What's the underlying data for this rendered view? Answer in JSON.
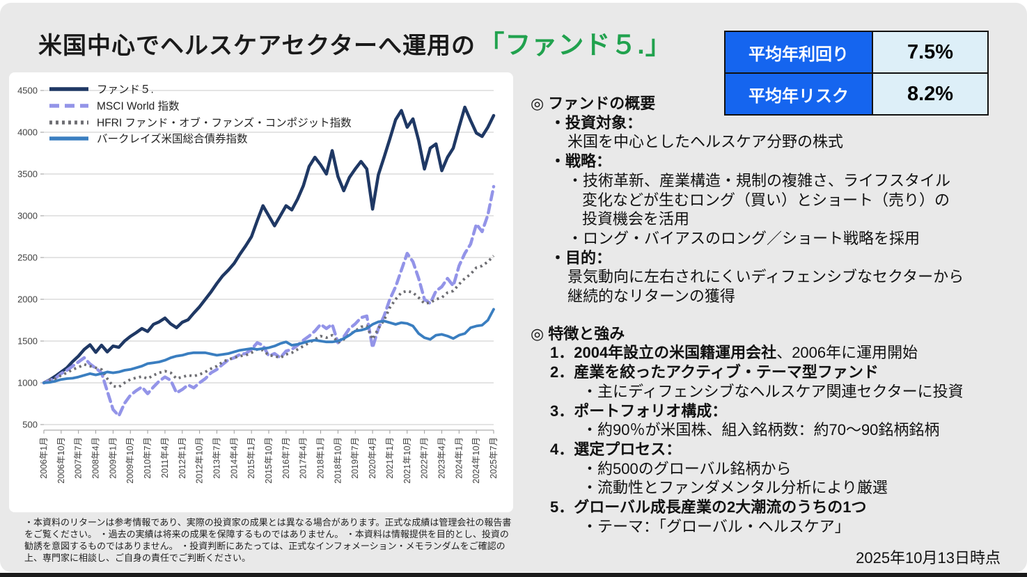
{
  "page": {
    "title_prefix": "米国中心でヘルスケアセクターへ運用の",
    "title_fund": "「ファンド５.」",
    "as_of_date": "2025年10月13日時点",
    "colors": {
      "slide_bg": "#E9E9E9",
      "title_accent_green": "#21A24E",
      "table_label_bg": "#1565EF",
      "table_value_bg": "#DDEFF8"
    }
  },
  "stats_table": {
    "rows": [
      {
        "label": "平均年利回り",
        "value": "7.5%"
      },
      {
        "label": "平均年リスク",
        "value": "8.2%"
      }
    ]
  },
  "overview": {
    "heading": "◎ ファンドの概要",
    "lines": [
      {
        "indent": 1,
        "bold": true,
        "text": "・投資対象："
      },
      {
        "indent": 2,
        "bold": false,
        "text": "米国を中心としたヘルスケア分野の株式"
      },
      {
        "indent": 1,
        "bold": true,
        "text": "・戦略："
      },
      {
        "indent": 2,
        "bold": false,
        "text": "・技術革新、産業構造・規制の複雑さ、ライフスタイル"
      },
      {
        "indent": 3,
        "bold": false,
        "text": "変化などが生むロング（買い）とショート（売り）の"
      },
      {
        "indent": 3,
        "bold": false,
        "text": "投資機会を活用"
      },
      {
        "indent": 2,
        "bold": false,
        "text": "・ロング・バイアスのロング／ショート戦略を採用"
      },
      {
        "indent": 1,
        "bold": true,
        "text": "・目的："
      },
      {
        "indent": 2,
        "bold": false,
        "text": "景気動向に左右されにくいディフェンシブなセクターから"
      },
      {
        "indent": 2,
        "bold": false,
        "text": "継続的なリターンの獲得"
      }
    ]
  },
  "features": {
    "heading": "◎ 特徴と強み",
    "lines": [
      {
        "indent": 1,
        "runs": [
          {
            "t": "1．2004年設立の米国籍運用会社",
            "b": true
          },
          {
            "t": "、2006年に運用開始",
            "b": false
          }
        ]
      },
      {
        "indent": 1,
        "bold": true,
        "text": "2．産業を絞ったアクティブ・テーマ型ファンド"
      },
      {
        "indent": 3,
        "bold": false,
        "text": "・主にディフェンシブなヘルスケア関連セクターに投資"
      },
      {
        "indent": 1,
        "bold": true,
        "text": "3．ポートフォリオ構成："
      },
      {
        "indent": 3,
        "bold": false,
        "text": "・約90％が米国株、組入銘柄数：約70～90銘柄銘柄"
      },
      {
        "indent": 1,
        "bold": true,
        "text": "4．選定プロセス："
      },
      {
        "indent": 3,
        "bold": false,
        "text": "・約500のグローバル銘柄から"
      },
      {
        "indent": 3,
        "bold": false,
        "text": "・流動性とファンダメンタル分析により厳選"
      },
      {
        "indent": 1,
        "bold": true,
        "text": "5．グローバル成長産業の2大潮流のうちの1つ"
      },
      {
        "indent": 3,
        "bold": false,
        "text": "・テーマ：「グローバル・ヘルスケア」"
      }
    ]
  },
  "disclaimer": "・本資料のリターンは参考情報であり、実際の投資家の成果とは異なる場合があります。正式な成績は管理会社の報告書をご覧ください。 ・過去の実績は将来の成果を保障するものではありません。 ・本資料は情報提供を目的とし、投資の勧誘を意図するものではありません。 ・投資判断にあたっては、正式なインフォメーション・メモランダムをご確認の上、専門家に相談し、ご自身の責任でご判断ください。",
  "chart_data": {
    "type": "line",
    "title": "",
    "xlabel": "",
    "ylabel": "",
    "ylim": [
      500,
      4500
    ],
    "yticks": [
      500,
      1000,
      1500,
      2000,
      2500,
      3000,
      3500,
      4000,
      4500
    ],
    "grid": "horizontal",
    "legend_position": "top-left-inside",
    "x_start": "2006-01",
    "x_end": "2025-07",
    "x_step_months": 3,
    "xtick_every_points": 3,
    "xtick_labels": [
      "2006年1月",
      "2006年10月",
      "2007年7月",
      "2008年4月",
      "2009年1月",
      "2009年10月",
      "2010年7月",
      "2011年4月",
      "2012年1月",
      "2012年10月",
      "2013年7月",
      "2014年4月",
      "2015年1月",
      "2015年10月",
      "2016年7月",
      "2017年4月",
      "2018年1月",
      "2018年10月",
      "2019年7月",
      "2020年4月",
      "2021年1月",
      "2021年10月",
      "2022年7月",
      "2023年4月",
      "2024年1月",
      "2024年10月",
      "2025年7月"
    ],
    "series": [
      {
        "name": "ファンド５.",
        "color": "#1F3864",
        "style": "solid",
        "width": 4.5,
        "values": [
          1000,
          1035,
          1080,
          1130,
          1180,
          1255,
          1320,
          1400,
          1455,
          1365,
          1450,
          1370,
          1440,
          1425,
          1500,
          1555,
          1600,
          1650,
          1615,
          1700,
          1730,
          1775,
          1705,
          1660,
          1725,
          1755,
          1835,
          1910,
          2000,
          2090,
          2190,
          2280,
          2350,
          2430,
          2540,
          2640,
          2750,
          2940,
          3120,
          3000,
          2880,
          3000,
          3120,
          3070,
          3200,
          3360,
          3590,
          3700,
          3610,
          3500,
          3780,
          3470,
          3300,
          3460,
          3560,
          3650,
          3560,
          3080,
          3490,
          3700,
          3920,
          4150,
          4260,
          4060,
          4160,
          3900,
          3560,
          3810,
          3860,
          3540,
          3700,
          3810,
          4060,
          4300,
          4140,
          3990,
          3950,
          4060,
          4200
        ]
      },
      {
        "name": "MSCI  World 指数",
        "color": "#9394E8",
        "style": "dashed",
        "width": 4.5,
        "values": [
          1000,
          1030,
          1055,
          1110,
          1150,
          1200,
          1250,
          1300,
          1225,
          1175,
          1120,
          900,
          680,
          605,
          755,
          850,
          905,
          950,
          870,
          950,
          1020,
          1070,
          1030,
          880,
          920,
          975,
          940,
          1000,
          1050,
          1120,
          1160,
          1220,
          1275,
          1300,
          1340,
          1350,
          1400,
          1480,
          1450,
          1320,
          1350,
          1300,
          1380,
          1400,
          1450,
          1510,
          1560,
          1620,
          1700,
          1650,
          1700,
          1480,
          1550,
          1650,
          1705,
          1780,
          1800,
          1420,
          1650,
          1800,
          2000,
          2150,
          2350,
          2550,
          2450,
          2250,
          2000,
          1950,
          2100,
          2150,
          2250,
          2160,
          2400,
          2550,
          2660,
          2900,
          2810,
          3010,
          3350
        ]
      },
      {
        "name": "HFRI ファンド・オブ・ファンズ・コンポジット指数",
        "color": "#6E6E73",
        "style": "dotted",
        "width": 3.8,
        "values": [
          1000,
          1030,
          1050,
          1090,
          1120,
          1160,
          1185,
          1220,
          1200,
          1180,
          1160,
          1050,
          960,
          950,
          1000,
          1040,
          1060,
          1075,
          1050,
          1090,
          1120,
          1140,
          1120,
          1050,
          1070,
          1090,
          1080,
          1100,
          1130,
          1170,
          1200,
          1250,
          1280,
          1300,
          1320,
          1330,
          1360,
          1400,
          1390,
          1330,
          1320,
          1300,
          1340,
          1360,
          1400,
          1440,
          1480,
          1520,
          1560,
          1540,
          1570,
          1480,
          1520,
          1580,
          1620,
          1670,
          1680,
          1520,
          1650,
          1750,
          1900,
          2000,
          2080,
          2100,
          2080,
          2020,
          1950,
          1960,
          2000,
          2020,
          2080,
          2100,
          2180,
          2250,
          2300,
          2380,
          2400,
          2450,
          2520
        ]
      },
      {
        "name": "バークレイズ米国総合債券指数",
        "color": "#3A7EC0",
        "style": "solid",
        "width": 3.8,
        "values": [
          1000,
          1005,
          1020,
          1040,
          1050,
          1055,
          1070,
          1090,
          1110,
          1095,
          1110,
          1130,
          1120,
          1130,
          1150,
          1160,
          1180,
          1200,
          1230,
          1240,
          1250,
          1270,
          1300,
          1320,
          1330,
          1350,
          1360,
          1360,
          1360,
          1345,
          1330,
          1340,
          1350,
          1370,
          1390,
          1400,
          1410,
          1400,
          1410,
          1420,
          1440,
          1470,
          1490,
          1450,
          1460,
          1480,
          1500,
          1510,
          1500,
          1490,
          1490,
          1500,
          1530,
          1570,
          1620,
          1630,
          1650,
          1700,
          1730,
          1740,
          1720,
          1700,
          1720,
          1710,
          1680,
          1590,
          1540,
          1520,
          1570,
          1580,
          1560,
          1530,
          1570,
          1590,
          1660,
          1680,
          1690,
          1750,
          1880
        ]
      }
    ]
  }
}
